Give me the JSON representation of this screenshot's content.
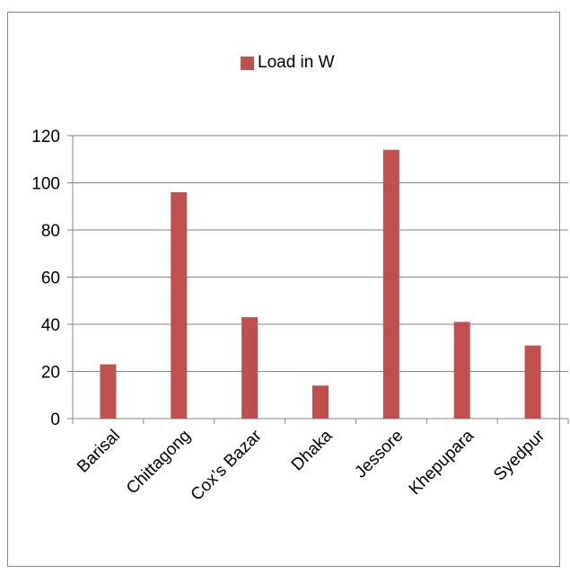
{
  "chart_data": {
    "type": "bar",
    "categories": [
      "Barisal",
      "Chittagong",
      "Cox’s Bazar",
      "Dhaka",
      "Jessore",
      "Khepupara",
      "Syedpur"
    ],
    "series": [
      {
        "name": "Load in W",
        "values": [
          23,
          96,
          43,
          14,
          114,
          41,
          31
        ],
        "color": "#C0504D"
      }
    ],
    "y_ticks": [
      "0",
      "20",
      "40",
      "60",
      "80",
      "100",
      "120"
    ],
    "ylim": [
      0,
      120
    ],
    "grid": true,
    "legend": "top-center"
  }
}
